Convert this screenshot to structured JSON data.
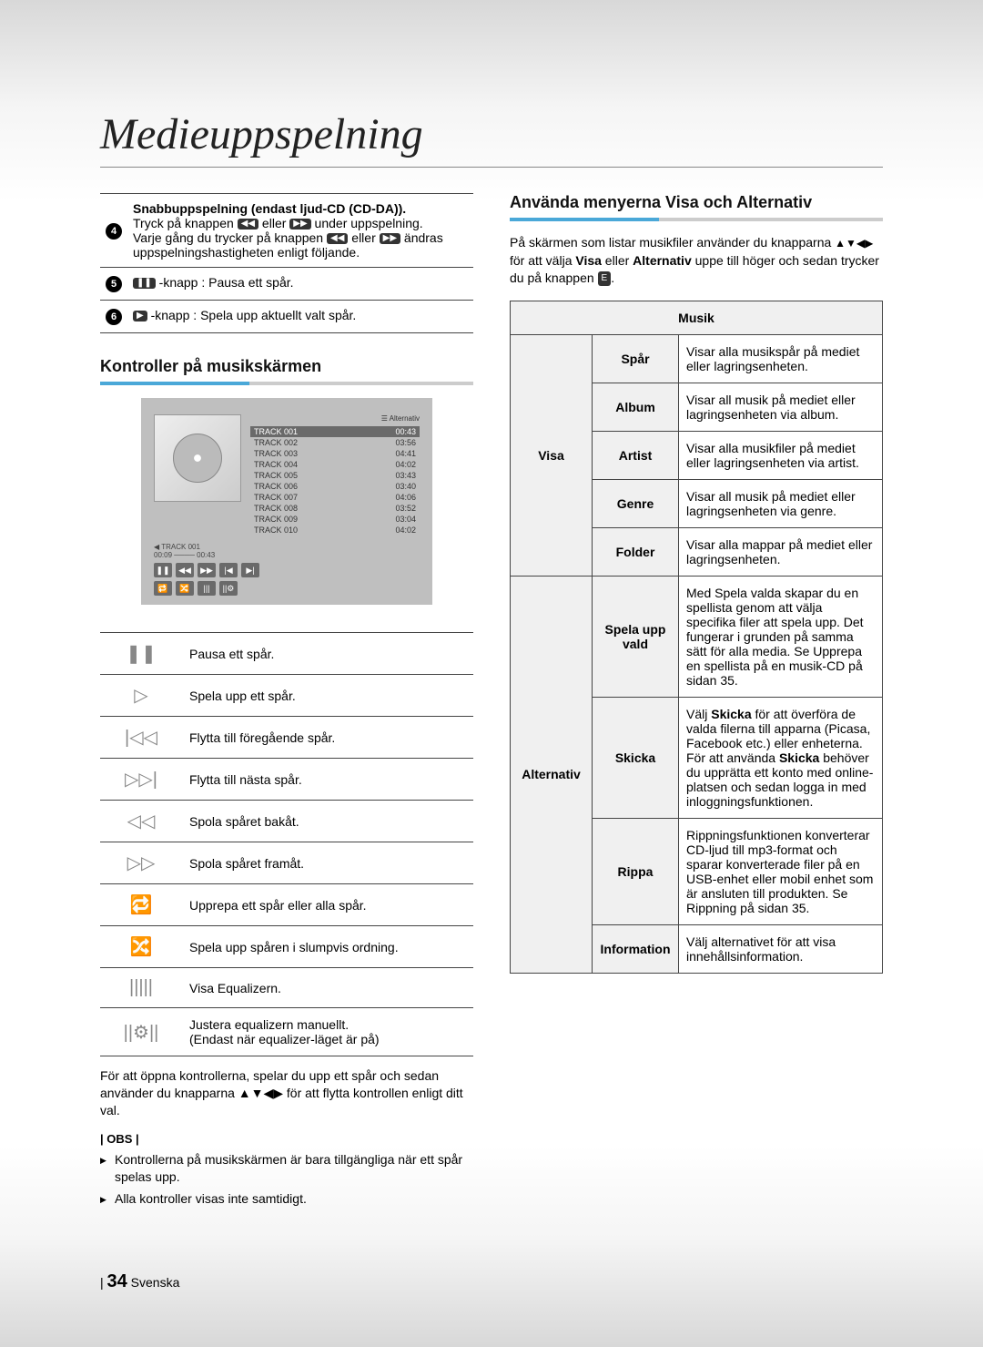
{
  "title": "Medieuppspelning",
  "topTable": {
    "row4": {
      "num": "4",
      "heading": "Snabbuppspelning (endast ljud-CD (CD-DA)).",
      "line1a": "Tryck på knappen ",
      "btn1": "◀◀",
      "line1b": " eller ",
      "btn2": "▶▶",
      "line1c": " under uppspelning.",
      "line2a": "Varje gång du trycker på knappen ",
      "btn3": "◀◀",
      "line2b": " eller ",
      "btn4": "▶▶",
      "line2c": " ändras uppspelningshastigheten enligt följande."
    },
    "row5": {
      "num": "5",
      "btn": "❚❚",
      "text": "-knapp : Pausa ett spår."
    },
    "row6": {
      "num": "6",
      "btn": "▶",
      "text": "-knapp : Spela upp aktuellt valt spår."
    }
  },
  "section1": "Kontroller på musikskärmen",
  "musicScreen": {
    "alternativ": "Alternativ",
    "tracks": [
      {
        "name": "TRACK 001",
        "time": "00:43",
        "sel": true
      },
      {
        "name": "TRACK 002",
        "time": "03:56"
      },
      {
        "name": "TRACK 003",
        "time": "04:41"
      },
      {
        "name": "TRACK 004",
        "time": "04:02"
      },
      {
        "name": "TRACK 005",
        "time": "03:43"
      },
      {
        "name": "TRACK 006",
        "time": "03:40"
      },
      {
        "name": "TRACK 007",
        "time": "04:06"
      },
      {
        "name": "TRACK 008",
        "time": "03:52"
      },
      {
        "name": "TRACK 009",
        "time": "03:04"
      },
      {
        "name": "TRACK 010",
        "time": "04:02"
      }
    ],
    "now": "◀ TRACK 001",
    "time": "00:09 ──── 00:43"
  },
  "iconTable": [
    {
      "icon": "❚❚",
      "desc": "Pausa ett spår."
    },
    {
      "icon": "▷",
      "desc": "Spela upp ett spår."
    },
    {
      "icon": "|◁◁",
      "desc": "Flytta till föregående spår."
    },
    {
      "icon": "▷▷|",
      "desc": "Flytta till nästa spår."
    },
    {
      "icon": "◁◁",
      "desc": "Spola spåret bakåt."
    },
    {
      "icon": "▷▷",
      "desc": "Spola spåret framåt."
    },
    {
      "icon": "🔁",
      "desc": "Upprepa ett spår eller alla spår."
    },
    {
      "icon": "🔀",
      "desc": "Spela upp spåren i slumpvis ordning."
    },
    {
      "icon": "|||||",
      "desc": "Visa Equalizern."
    },
    {
      "icon": "||⚙||",
      "desc": "Justera equalizern manuellt.\n(Endast när equalizer-läget är på)"
    }
  ],
  "notePara": "För att öppna kontrollerna, spelar du upp ett spår och sedan använder du knapparna ▲▼◀▶ för att flytta kontrollen enligt ditt val.",
  "obsLabel": "| OBS |",
  "obsItems": [
    "Kontrollerna på musikskärmen är bara tillgängliga när ett spår spelas upp.",
    "Alla kontroller visas inte samtidigt."
  ],
  "section2": "Använda menyerna Visa och Alternativ",
  "intro": {
    "a": "På skärmen som listar musikfiler använder du knapparna ",
    "arrows": "▲▼◀▶",
    "b": " för att välja ",
    "visa": "Visa",
    "c": " eller ",
    "alt": "Alternativ",
    "d": " uppe till höger och sedan trycker du på knappen ",
    "enter": "E",
    "e": "."
  },
  "menuTable": {
    "header": "Musik",
    "groups": [
      {
        "cat": "Visa",
        "rows": [
          {
            "sub": "Spår",
            "desc": "Visar alla musikspår på mediet eller lagringsenheten."
          },
          {
            "sub": "Album",
            "desc": "Visar all musik på mediet eller lagringsenheten via album."
          },
          {
            "sub": "Artist",
            "desc": "Visar alla musikfiler på mediet eller lagringsenheten via artist."
          },
          {
            "sub": "Genre",
            "desc": "Visar all musik på mediet eller lagringsenheten via genre."
          },
          {
            "sub": "Folder",
            "desc": "Visar alla mappar på mediet eller lagringsenheten."
          }
        ]
      },
      {
        "cat": "Alternativ",
        "rows": [
          {
            "sub": "Spela upp vald",
            "desc": "Med Spela valda skapar du en spellista genom att välja specifika filer att spela upp. Det fungerar i grunden på samma sätt för alla media. Se Upprepa en spellista på en musik-CD på sidan 35."
          },
          {
            "sub": "Skicka",
            "desc": "Välj <b>Skicka</b> för att överföra de valda filerna till apparna (Picasa, Facebook etc.) eller enheterna. För att använda <b>Skicka</b> behöver du upprätta ett konto med online-platsen och sedan logga in med inloggningsfunktionen."
          },
          {
            "sub": "Rippa",
            "desc": "Rippningsfunktionen konverterar CD-ljud till mp3-format och sparar konverterade filer på en USB-enhet eller mobil enhet som är ansluten till produkten. Se Rippning på sidan 35."
          },
          {
            "sub": "Information",
            "desc": "Välj alternativet för att visa innehållsinformation."
          }
        ]
      }
    ]
  },
  "footer": {
    "page": "34",
    "lang": "Svenska"
  }
}
